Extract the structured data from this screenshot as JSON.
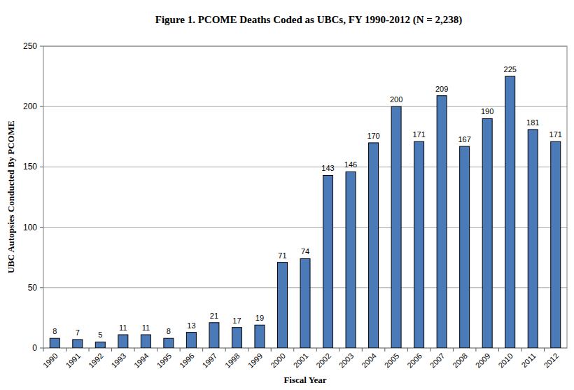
{
  "chart_data": {
    "type": "bar",
    "title": "Figure 1. PCOME Deaths Coded as UBCs, FY 1990-2012 (N = 2,238)",
    "x_label": "Fiscal Year",
    "y_label": "UBC Autopsies Conducted By PCOME",
    "categories": [
      "1990",
      "1991",
      "1992",
      "1993",
      "1994",
      "1995",
      "1996",
      "1997",
      "1998",
      "1999",
      "2000",
      "2001",
      "2002",
      "2003",
      "2004",
      "2005",
      "2006",
      "2007",
      "2008",
      "2009",
      "2010",
      "2011",
      "2012"
    ],
    "values": [
      8,
      7,
      5,
      11,
      11,
      8,
      13,
      21,
      17,
      19,
      71,
      74,
      143,
      146,
      170,
      200,
      171,
      209,
      167,
      190,
      225,
      181,
      171
    ],
    "color": "#4a7ab8",
    "ylim": [
      0,
      250
    ],
    "yticks": [
      0,
      50,
      100,
      150,
      200,
      250
    ],
    "grid": true,
    "data_labels": true
  }
}
